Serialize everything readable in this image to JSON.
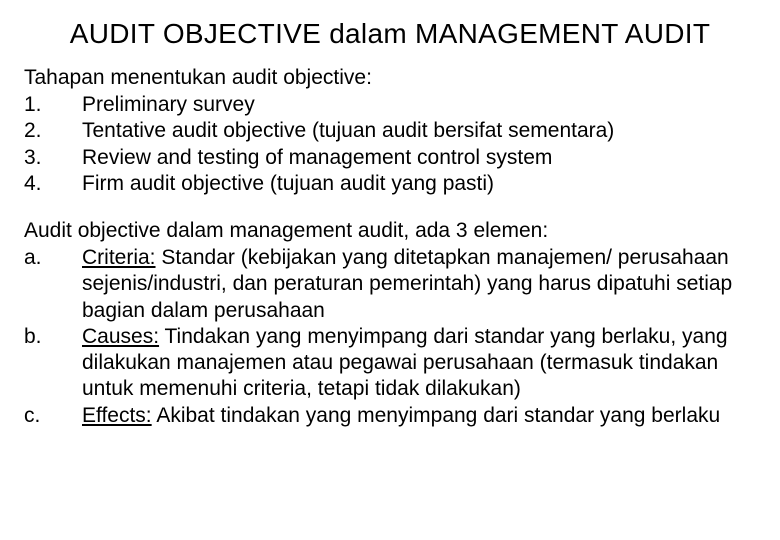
{
  "title": "AUDIT OBJECTIVE dalam MANAGEMENT AUDIT",
  "section1": {
    "intro": "Tahapan menentukan audit objective:",
    "items": [
      {
        "num": "1.",
        "text": "Preliminary survey"
      },
      {
        "num": "2.",
        "text": "Tentative audit objective (tujuan audit bersifat sementara)"
      },
      {
        "num": "3.",
        "text": "Review and testing of management control system"
      },
      {
        "num": "4.",
        "text": "Firm audit objective (tujuan audit yang pasti)"
      }
    ]
  },
  "section2": {
    "intro": "Audit objective dalam management audit, ada 3 elemen:",
    "items": [
      {
        "num": "a.",
        "underlined": "Criteria:",
        "text": " Standar (kebijakan yang ditetapkan manajemen/ perusahaan sejenis/industri, dan peraturan pemerintah) yang harus dipatuhi setiap bagian dalam perusahaan"
      },
      {
        "num": "b.",
        "underlined": "Causes:",
        "text": " Tindakan yang menyimpang dari standar yang berlaku, yang dilakukan manajemen atau pegawai perusahaan (termasuk tindakan untuk memenuhi criteria, tetapi tidak dilakukan)"
      },
      {
        "num": "c.",
        "underlined": "Effects:",
        "text": " Akibat tindakan yang menyimpang dari standar yang berlaku"
      }
    ]
  },
  "styles": {
    "background_color": "#ffffff",
    "text_color": "#000000",
    "title_fontsize": 28,
    "body_fontsize": 21,
    "font_family": "Arial"
  }
}
